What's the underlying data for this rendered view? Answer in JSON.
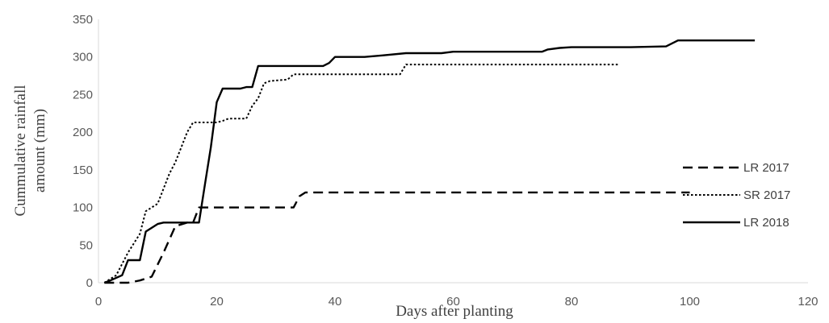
{
  "chart_data": {
    "type": "line",
    "title": "",
    "xlabel": "Days after planting",
    "ylabel_lines": [
      "Cummulative rainfall",
      "amount (mm)"
    ],
    "xlim": [
      0,
      120
    ],
    "ylim": [
      0,
      350
    ],
    "x_ticks": [
      "0",
      "20",
      "40",
      "60",
      "80",
      "100",
      "120"
    ],
    "y_ticks": [
      "0",
      "50",
      "100",
      "150",
      "200",
      "250",
      "300",
      "350"
    ],
    "grid": false,
    "legend_position": "right",
    "series": [
      {
        "name": "LR 2017",
        "style": "dashed",
        "color": "#000000",
        "points": [
          [
            1,
            0
          ],
          [
            3,
            0
          ],
          [
            5,
            0
          ],
          [
            7,
            3
          ],
          [
            9,
            8
          ],
          [
            11,
            40
          ],
          [
            13,
            75
          ],
          [
            15,
            80
          ],
          [
            16,
            80
          ],
          [
            17,
            100
          ],
          [
            18,
            100
          ],
          [
            25,
            100
          ],
          [
            33,
            100
          ],
          [
            34,
            115
          ],
          [
            35,
            120
          ],
          [
            40,
            120
          ],
          [
            60,
            120
          ],
          [
            80,
            120
          ],
          [
            100,
            120
          ]
        ]
      },
      {
        "name": "SR 2017",
        "style": "dotted",
        "color": "#000000",
        "points": [
          [
            1,
            0
          ],
          [
            3,
            10
          ],
          [
            5,
            40
          ],
          [
            7,
            65
          ],
          [
            8,
            95
          ],
          [
            9,
            100
          ],
          [
            10,
            105
          ],
          [
            11,
            125
          ],
          [
            12,
            145
          ],
          [
            13,
            160
          ],
          [
            14,
            180
          ],
          [
            15,
            200
          ],
          [
            16,
            213
          ],
          [
            18,
            213
          ],
          [
            20,
            213
          ],
          [
            21,
            215
          ],
          [
            22,
            218
          ],
          [
            25,
            218
          ],
          [
            26,
            235
          ],
          [
            27,
            245
          ],
          [
            28,
            265
          ],
          [
            29,
            268
          ],
          [
            32,
            270
          ],
          [
            33,
            277
          ],
          [
            40,
            277
          ],
          [
            51,
            277
          ],
          [
            52,
            290
          ],
          [
            60,
            290
          ],
          [
            70,
            290
          ],
          [
            80,
            290
          ],
          [
            88,
            290
          ]
        ]
      },
      {
        "name": "LR 2018",
        "style": "solid",
        "color": "#000000",
        "points": [
          [
            1,
            0
          ],
          [
            2,
            3
          ],
          [
            4,
            10
          ],
          [
            5,
            30
          ],
          [
            7,
            30
          ],
          [
            8,
            68
          ],
          [
            10,
            78
          ],
          [
            11,
            80
          ],
          [
            13,
            80
          ],
          [
            17,
            80
          ],
          [
            18,
            130
          ],
          [
            19,
            180
          ],
          [
            20,
            240
          ],
          [
            21,
            258
          ],
          [
            22,
            258
          ],
          [
            24,
            258
          ],
          [
            25,
            260
          ],
          [
            26,
            260
          ],
          [
            27,
            288
          ],
          [
            30,
            288
          ],
          [
            38,
            288
          ],
          [
            39,
            292
          ],
          [
            40,
            300
          ],
          [
            45,
            300
          ],
          [
            48,
            302
          ],
          [
            52,
            305
          ],
          [
            58,
            305
          ],
          [
            60,
            307
          ],
          [
            70,
            307
          ],
          [
            75,
            307
          ],
          [
            76,
            310
          ],
          [
            78,
            312
          ],
          [
            80,
            313
          ],
          [
            90,
            313
          ],
          [
            96,
            314
          ],
          [
            98,
            322
          ],
          [
            105,
            322
          ],
          [
            111,
            322
          ]
        ]
      }
    ]
  }
}
